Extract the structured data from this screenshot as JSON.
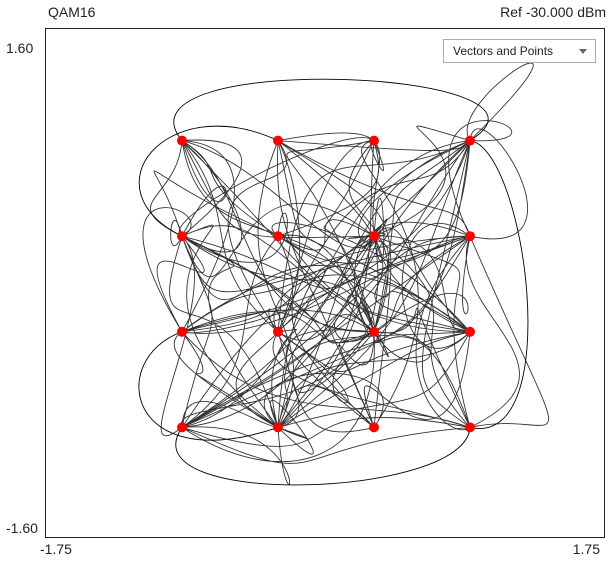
{
  "header": {
    "title": "QAM16",
    "reference": "Ref -30.000 dBm"
  },
  "display_mode": {
    "selected": "Vectors and Points"
  },
  "chart_data": {
    "type": "scatter",
    "title": "QAM16",
    "xlabel": "",
    "ylabel": "",
    "xlim": [
      -1.75,
      1.75
    ],
    "ylim": [
      -1.6,
      1.6
    ],
    "x_tick_labels": [
      "-1.75",
      "1.75"
    ],
    "y_tick_labels": [
      "1.60",
      "-1.60"
    ],
    "grid": false,
    "trace_color": "#000000",
    "point_color": "#ff0000",
    "points": [
      {
        "x": -0.9,
        "y": 0.9
      },
      {
        "x": -0.3,
        "y": 0.9
      },
      {
        "x": 0.3,
        "y": 0.9
      },
      {
        "x": 0.9,
        "y": 0.9
      },
      {
        "x": -0.9,
        "y": 0.3
      },
      {
        "x": -0.3,
        "y": 0.3
      },
      {
        "x": 0.3,
        "y": 0.3
      },
      {
        "x": 0.9,
        "y": 0.3
      },
      {
        "x": -0.9,
        "y": -0.3
      },
      {
        "x": -0.3,
        "y": -0.3
      },
      {
        "x": 0.3,
        "y": -0.3
      },
      {
        "x": 0.9,
        "y": -0.3
      },
      {
        "x": -0.9,
        "y": -0.9
      },
      {
        "x": -0.3,
        "y": -0.9
      },
      {
        "x": 0.3,
        "y": -0.9
      },
      {
        "x": 0.9,
        "y": -0.9
      }
    ]
  }
}
